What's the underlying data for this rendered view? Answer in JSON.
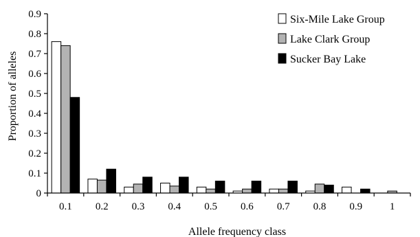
{
  "chart_data": {
    "type": "bar",
    "title": "",
    "xlabel": "Allele frequency class",
    "ylabel": "Proportion of alleles",
    "ylim": [
      0,
      0.9
    ],
    "yticks": [
      "0",
      "0.1",
      "0.2",
      "0.3",
      "0.4",
      "0.5",
      "0.6",
      "0.7",
      "0.8",
      "0.9"
    ],
    "categories": [
      "0.1",
      "0.2",
      "0.3",
      "0.4",
      "0.5",
      "0.6",
      "0.7",
      "0.8",
      "0.9",
      "1"
    ],
    "grid": false,
    "legend_position": "top-right",
    "series": [
      {
        "name": "Six-Mile Lake Group",
        "color": "#ffffff",
        "values": [
          0.76,
          0.07,
          0.03,
          0.05,
          0.03,
          0.01,
          0.02,
          0.01,
          0.03,
          0.0
        ]
      },
      {
        "name": "Lake Clark Group",
        "color": "#b3b3b3",
        "values": [
          0.74,
          0.065,
          0.045,
          0.035,
          0.02,
          0.02,
          0.02,
          0.045,
          0.0,
          0.01
        ]
      },
      {
        "name": "Sucker Bay Lake",
        "color": "#000000",
        "values": [
          0.48,
          0.12,
          0.08,
          0.08,
          0.06,
          0.06,
          0.06,
          0.04,
          0.02,
          0.0
        ]
      }
    ]
  }
}
